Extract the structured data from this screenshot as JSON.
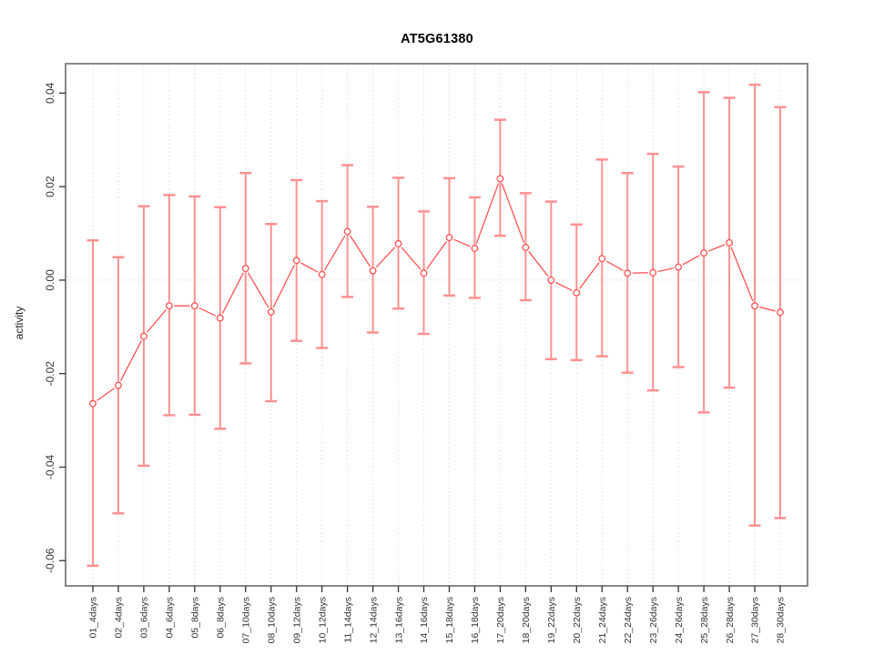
{
  "chart_data": {
    "type": "line",
    "title": "AT5G61380",
    "xlabel": "",
    "ylabel": "activity",
    "legend": "none",
    "marker": "open-circle",
    "grid": {
      "vertical": "dotted-per-category",
      "horizontal": "dotted-zero-line-only"
    },
    "ylim": [
      -0.0654,
      0.0463
    ],
    "yticks": [
      -0.06,
      -0.04,
      -0.02,
      0,
      0.02,
      0.04
    ],
    "ytick_labels": [
      "-0.06",
      "-0.04",
      "-0.02",
      "0.00",
      "0.02",
      "0.04"
    ],
    "categories": [
      "01_4days",
      "02_4days",
      "03_6days",
      "04_6days",
      "05_8days",
      "06_8days",
      "07_10days",
      "08_10days",
      "09_12days",
      "10_12days",
      "11_14days",
      "12_14days",
      "13_16days",
      "14_16days",
      "15_18days",
      "16_18days",
      "17_20days",
      "18_20days",
      "19_22days",
      "20_22days",
      "21_24days",
      "22_24days",
      "23_26days",
      "24_26days",
      "25_28days",
      "26_28days",
      "27_30days",
      "28_30days"
    ],
    "series": [
      {
        "name": "activity",
        "values": [
          -0.0264,
          -0.0225,
          -0.012,
          -0.0055,
          -0.0055,
          -0.0081,
          0.0025,
          -0.0068,
          0.0042,
          0.0012,
          0.0104,
          0.002,
          0.0078,
          0.0015,
          0.0091,
          0.0068,
          0.0217,
          0.007,
          0.0,
          -0.0027,
          0.0046,
          0.0015,
          0.0016,
          0.0028,
          0.0058,
          0.008,
          -0.0055,
          -0.0069
        ],
        "error_lower": [
          -0.0611,
          -0.0499,
          -0.0397,
          -0.0289,
          -0.0288,
          -0.0318,
          -0.0178,
          -0.0259,
          -0.013,
          -0.0145,
          -0.0036,
          -0.0112,
          -0.0061,
          -0.0115,
          -0.0033,
          -0.0038,
          0.0095,
          -0.0043,
          -0.0169,
          -0.0171,
          -0.0163,
          -0.0198,
          -0.0236,
          -0.0186,
          -0.0283,
          -0.023,
          -0.0525,
          -0.0509
        ],
        "error_upper": [
          0.0085,
          0.0049,
          0.0158,
          0.0182,
          0.0179,
          0.0156,
          0.0229,
          0.012,
          0.0214,
          0.0169,
          0.0246,
          0.0157,
          0.0219,
          0.0147,
          0.0218,
          0.0177,
          0.0343,
          0.0186,
          0.0168,
          0.0119,
          0.0258,
          0.0229,
          0.027,
          0.0243,
          0.0402,
          0.039,
          0.0418,
          0.037
        ]
      }
    ],
    "colors": {
      "error_bar": "#ff9191",
      "line": "#ff5252",
      "marker_stroke": "#ff5252",
      "marker_fill": "#ffffff",
      "grid": "#dcdcdc",
      "frame": "#888888",
      "tick": "#333333",
      "tick_label": "#333333",
      "title": "#000000",
      "background": "#ffffff"
    }
  }
}
